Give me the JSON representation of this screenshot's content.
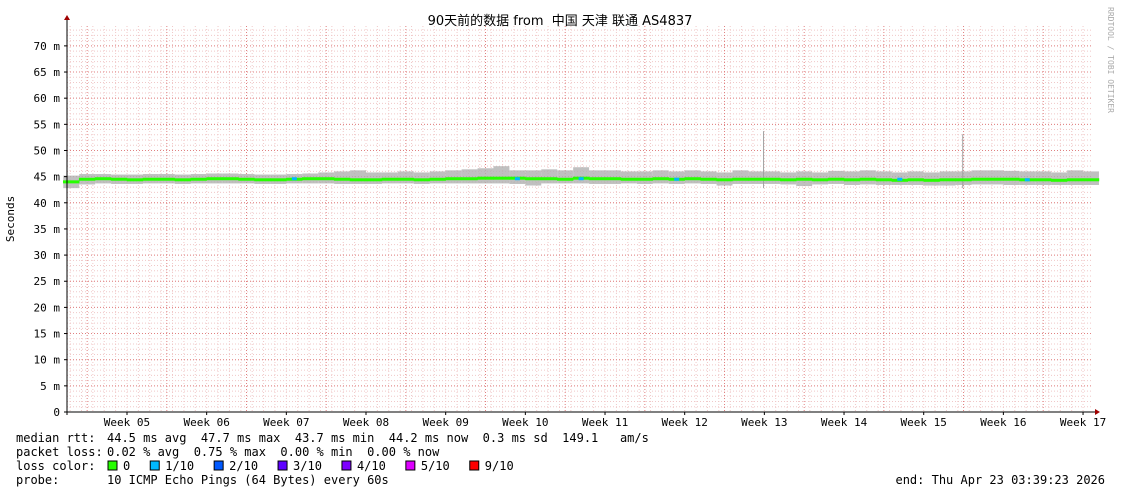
{
  "chart_data": {
    "type": "smokeping",
    "title": "90天前的数据 from  中国 天津 联通 AS4837",
    "y_label": "Seconds",
    "side_text": "RRDTOOL / TOBI OETIKER",
    "xlim": [
      4.247,
      17.125
    ],
    "xticks": [
      {
        "value": 5,
        "label": "Week 05"
      },
      {
        "value": 6,
        "label": "Week 06"
      },
      {
        "value": 7,
        "label": "Week 07"
      },
      {
        "value": 8,
        "label": "Week 08"
      },
      {
        "value": 9,
        "label": "Week 09"
      },
      {
        "value": 10,
        "label": "Week 10"
      },
      {
        "value": 11,
        "label": "Week 11"
      },
      {
        "value": 12,
        "label": "Week 12"
      },
      {
        "value": 13,
        "label": "Week 13"
      },
      {
        "value": 14,
        "label": "Week 14"
      },
      {
        "value": 15,
        "label": "Week 15"
      },
      {
        "value": 16,
        "label": "Week 16"
      },
      {
        "value": 17,
        "label": "Week 17"
      }
    ],
    "ylim": [
      0,
      0.0738
    ],
    "yticks": [
      0,
      {
        "value": 0.005,
        "label": "5 m"
      },
      {
        "value": 0.01,
        "label": "10 m"
      },
      {
        "value": 0.015,
        "label": "15 m"
      },
      {
        "value": 0.02,
        "label": "20 m"
      },
      {
        "value": 0.025,
        "label": "25 m"
      },
      {
        "value": 0.03,
        "label": "30 m"
      },
      {
        "value": 0.035,
        "label": "35 m"
      },
      {
        "value": 0.04,
        "label": "40 m"
      },
      {
        "value": 0.045,
        "label": "45 m"
      },
      {
        "value": 0.05,
        "label": "50 m"
      },
      {
        "value": 0.055,
        "label": "55 m"
      },
      {
        "value": 0.06,
        "label": "60 m"
      },
      {
        "value": 0.065,
        "label": "65 m"
      },
      {
        "value": 0.07,
        "label": "70 m"
      }
    ],
    "grid": true,
    "smoke": {
      "color": "#b0b0b0",
      "x": [
        4.3,
        4.5,
        4.7,
        4.9,
        5.1,
        5.3,
        5.5,
        5.7,
        5.9,
        6.1,
        6.3,
        6.5,
        6.7,
        6.9,
        7.1,
        7.3,
        7.5,
        7.7,
        7.9,
        8.1,
        8.3,
        8.5,
        8.7,
        8.9,
        9.1,
        9.3,
        9.5,
        9.7,
        9.9,
        10.1,
        10.3,
        10.5,
        10.7,
        10.9,
        11.1,
        11.3,
        11.5,
        11.7,
        11.9,
        12.1,
        12.3,
        12.5,
        12.7,
        12.9,
        13.1,
        13.3,
        13.5,
        13.7,
        13.9,
        14.1,
        14.3,
        14.5,
        14.7,
        14.9,
        15.1,
        15.3,
        15.5,
        15.7,
        15.9,
        16.1,
        16.3,
        16.5,
        16.7,
        16.9,
        17.1
      ],
      "max": [
        0.0452,
        0.0455,
        0.0455,
        0.0454,
        0.0454,
        0.0455,
        0.0455,
        0.0454,
        0.0455,
        0.0456,
        0.0456,
        0.0455,
        0.0454,
        0.0454,
        0.0455,
        0.0456,
        0.0458,
        0.046,
        0.0462,
        0.0458,
        0.0458,
        0.046,
        0.0458,
        0.046,
        0.0462,
        0.0464,
        0.0466,
        0.047,
        0.0462,
        0.0462,
        0.0464,
        0.0462,
        0.0468,
        0.0462,
        0.0462,
        0.046,
        0.046,
        0.0462,
        0.046,
        0.0462,
        0.046,
        0.0458,
        0.0462,
        0.046,
        0.046,
        0.0458,
        0.046,
        0.0458,
        0.0461,
        0.046,
        0.0462,
        0.046,
        0.0458,
        0.046,
        0.0458,
        0.046,
        0.046,
        0.0462,
        0.0462,
        0.0461,
        0.046,
        0.046,
        0.0458,
        0.0462,
        0.046
      ],
      "min": [
        0.0428,
        0.0435,
        0.0437,
        0.0436,
        0.0436,
        0.0437,
        0.0437,
        0.0436,
        0.0437,
        0.0437,
        0.0437,
        0.0437,
        0.0436,
        0.0436,
        0.0437,
        0.0437,
        0.0437,
        0.0436,
        0.0436,
        0.0436,
        0.0437,
        0.0437,
        0.0436,
        0.0437,
        0.0437,
        0.0437,
        0.0437,
        0.0437,
        0.0436,
        0.0433,
        0.0437,
        0.0437,
        0.0437,
        0.0436,
        0.0436,
        0.0437,
        0.0436,
        0.0437,
        0.0436,
        0.0437,
        0.0436,
        0.0433,
        0.0436,
        0.0436,
        0.0436,
        0.0435,
        0.0432,
        0.0435,
        0.0436,
        0.0434,
        0.0435,
        0.0434,
        0.0434,
        0.0434,
        0.0433,
        0.0433,
        0.0434,
        0.0435,
        0.0435,
        0.0434,
        0.0434,
        0.0434,
        0.0434,
        0.0434,
        0.0434
      ]
    },
    "spikes": {
      "color": "#a0a0a0",
      "x": [
        12.99,
        15.49
      ],
      "values": [
        0.0537,
        0.0531
      ]
    },
    "series": [
      {
        "name": "0",
        "color": "#26ff00",
        "x": [
          4.3,
          4.5,
          4.7,
          4.9,
          5.1,
          5.3,
          5.5,
          5.7,
          5.9,
          6.1,
          6.3,
          6.5,
          6.7,
          6.9,
          7.1,
          7.3,
          7.5,
          7.7,
          7.9,
          8.1,
          8.3,
          8.5,
          8.7,
          8.9,
          9.1,
          9.3,
          9.5,
          9.7,
          9.9,
          10.1,
          10.3,
          10.5,
          10.7,
          10.9,
          11.1,
          11.3,
          11.5,
          11.7,
          11.9,
          12.1,
          12.3,
          12.5,
          12.7,
          12.9,
          13.1,
          13.3,
          13.5,
          13.7,
          13.9,
          14.1,
          14.3,
          14.5,
          14.7,
          14.9,
          15.1,
          15.3,
          15.5,
          15.7,
          15.9,
          16.1,
          16.3,
          16.5,
          16.7,
          16.9,
          17.1
        ],
        "values": [
          0.044,
          0.0445,
          0.0446,
          0.0445,
          0.0444,
          0.0445,
          0.0445,
          0.0444,
          0.0445,
          0.0446,
          0.0446,
          0.0445,
          0.0444,
          0.0444,
          0.0445,
          0.0446,
          0.0446,
          0.0445,
          0.0444,
          0.0444,
          0.0445,
          0.0445,
          0.0444,
          0.0445,
          0.0446,
          0.0446,
          0.0447,
          0.0447,
          0.0447,
          0.0446,
          0.0446,
          0.0445,
          0.0447,
          0.0446,
          0.0446,
          0.0445,
          0.0445,
          0.0446,
          0.0445,
          0.0446,
          0.0445,
          0.0444,
          0.0445,
          0.0445,
          0.0445,
          0.0444,
          0.0445,
          0.0444,
          0.0445,
          0.0444,
          0.0445,
          0.0444,
          0.0443,
          0.0444,
          0.0443,
          0.0444,
          0.0444,
          0.0445,
          0.0445,
          0.0445,
          0.0444,
          0.0444,
          0.0443,
          0.0444,
          0.0444
        ]
      },
      {
        "name": "1/10",
        "color": "#00b8ff",
        "x": [
          7.1,
          9.9,
          10.7,
          11.9,
          14.7,
          16.3
        ],
        "values": [
          0.0446,
          0.0446,
          0.0446,
          0.0445,
          0.0445,
          0.0444
        ]
      },
      {
        "name": "2/10",
        "color": "#0059ff",
        "x": [],
        "values": []
      },
      {
        "name": "3/10",
        "color": "#5e00ff",
        "x": [],
        "values": []
      },
      {
        "name": "4/10",
        "color": "#7e00ff",
        "x": [],
        "values": []
      },
      {
        "name": "5/10",
        "color": "#dd00ff",
        "x": [],
        "values": []
      },
      {
        "name": "9/10",
        "color": "#ff0000",
        "x": [],
        "values": []
      }
    ],
    "stats": [
      {
        "label": "median rtt:",
        "text": "44.5 ms avg  47.7 ms max  43.7 ms min  44.2 ms now  0.3 ms sd  149.1   am/s"
      },
      {
        "label": "packet loss:",
        "text": "0.02 % avg  0.75 % max  0.00 % min  0.00 % now"
      }
    ],
    "loss_label": "loss color:",
    "probe_label": "probe:",
    "probe_text": "10 ICMP Echo Pings (64 Bytes) every 60s",
    "end_text": "end: Thu Apr 23 03:39:23 2026"
  }
}
